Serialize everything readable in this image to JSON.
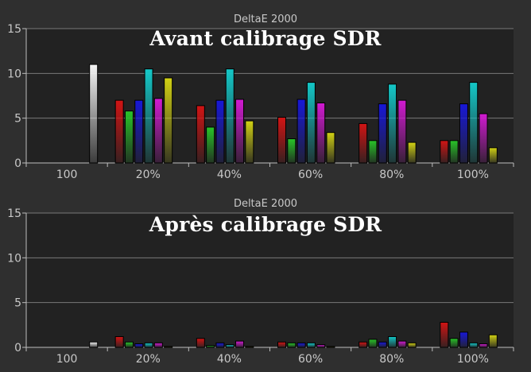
{
  "colors": {
    "white": "#f5f5f5",
    "red": "#d21414",
    "green": "#28c428",
    "blue": "#1818d8",
    "cyan": "#14c8c8",
    "magenta": "#d21ad2",
    "yellow": "#d2d214"
  },
  "chart_data": [
    {
      "type": "bar",
      "title": "DeltaE 2000",
      "overlay_title": "Avant calibrage SDR",
      "categories": [
        "100",
        "20%",
        "40%",
        "60%",
        "80%",
        "100%"
      ],
      "ylim": [
        0,
        15
      ],
      "yticks": [
        0,
        5,
        10,
        15
      ],
      "grid": true,
      "series": [
        {
          "color": "white",
          "values": [
            11.0,
            null,
            null,
            null,
            null,
            null
          ]
        },
        {
          "color": "red",
          "values": [
            null,
            7.0,
            6.4,
            5.1,
            4.4,
            2.5
          ]
        },
        {
          "color": "green",
          "values": [
            null,
            5.8,
            4.0,
            2.7,
            2.5,
            2.5
          ]
        },
        {
          "color": "blue",
          "values": [
            null,
            7.0,
            7.0,
            7.1,
            6.6,
            6.6
          ]
        },
        {
          "color": "cyan",
          "values": [
            null,
            10.5,
            10.5,
            9.0,
            8.8,
            9.0
          ]
        },
        {
          "color": "magenta",
          "values": [
            null,
            7.2,
            7.1,
            6.7,
            7.0,
            5.5
          ]
        },
        {
          "color": "yellow",
          "values": [
            null,
            9.5,
            4.7,
            3.4,
            2.3,
            1.7
          ]
        }
      ]
    },
    {
      "type": "bar",
      "title": "DeltaE 2000",
      "overlay_title": "Après calibrage SDR",
      "categories": [
        "100",
        "20%",
        "40%",
        "60%",
        "80%",
        "100%"
      ],
      "ylim": [
        0,
        15
      ],
      "yticks": [
        0,
        5,
        10,
        15
      ],
      "grid": true,
      "series": [
        {
          "color": "white",
          "values": [
            0.6,
            null,
            null,
            null,
            null,
            null
          ]
        },
        {
          "color": "red",
          "values": [
            null,
            1.2,
            1.0,
            0.6,
            0.6,
            2.8
          ]
        },
        {
          "color": "green",
          "values": [
            null,
            0.6,
            0.2,
            0.5,
            0.9,
            1.0
          ]
        },
        {
          "color": "blue",
          "values": [
            null,
            0.4,
            0.5,
            0.5,
            0.6,
            1.7
          ]
        },
        {
          "color": "cyan",
          "values": [
            null,
            0.5,
            0.3,
            0.5,
            1.2,
            0.5
          ]
        },
        {
          "color": "magenta",
          "values": [
            null,
            0.5,
            0.7,
            0.3,
            0.7,
            0.4
          ]
        },
        {
          "color": "yellow",
          "values": [
            null,
            0.1,
            0.1,
            0.1,
            0.5,
            1.4
          ]
        }
      ]
    }
  ]
}
